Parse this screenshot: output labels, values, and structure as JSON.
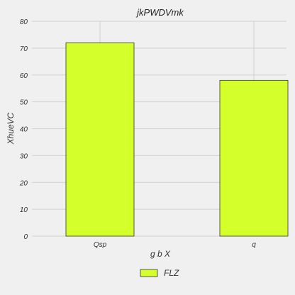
{
  "chart_data": {
    "type": "bar",
    "title": "jkPWDVmk",
    "xlabel": "g b X",
    "ylabel": "XhueVC",
    "categories": [
      "Qsp",
      "q"
    ],
    "series": [
      {
        "name": "FLZ",
        "values": [
          72,
          58
        ]
      }
    ],
    "ylim": [
      0,
      80
    ],
    "yticks": [
      0,
      10,
      20,
      30,
      40,
      50,
      60,
      70,
      80
    ],
    "grid": true,
    "legend_position": "bottom-center",
    "colors": {
      "bar_fill": "#d4ff2a",
      "bar_edge": "#333333",
      "background": "#f0f0f0",
      "grid": "#d0d0d0"
    }
  }
}
